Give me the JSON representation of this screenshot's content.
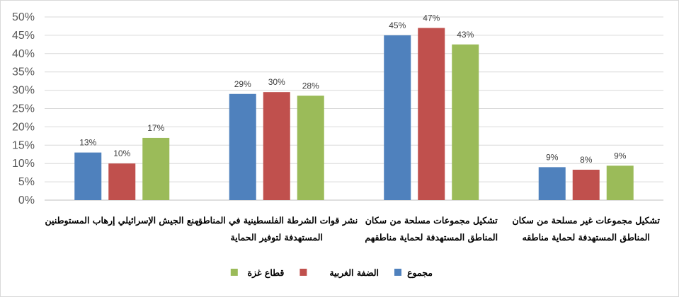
{
  "chart_data": {
    "type": "bar",
    "title": "",
    "xlabel": "",
    "ylabel": "",
    "ylim": [
      0,
      50
    ],
    "yticks": [
      "0%",
      "5%",
      "10%",
      "15%",
      "20%",
      "25%",
      "30%",
      "35%",
      "40%",
      "45%",
      "50%"
    ],
    "grid": true,
    "legend_position": "bottom",
    "categories": [
      [
        "منع الجيش الإسرائيلي إرهاب المستوطنين"
      ],
      [
        "نشر قوات الشرطة الفلسطينية في المناطق",
        "المستهدفة لتوفير الحماية"
      ],
      [
        "تشكيل مجموعات مسلحة من سكان",
        "المناطق المستهدفة لحماية مناطقهم"
      ],
      [
        "تشكيل مجموعات غير مسلحة من سكان",
        "المناطق المستهدفة لحماية مناطقه"
      ]
    ],
    "series": [
      {
        "name": "مجموع",
        "color": "#4f81bd",
        "values": [
          13,
          29,
          45,
          9
        ],
        "labels": [
          "13%",
          "29%",
          "45%",
          "9%"
        ]
      },
      {
        "name": "الضفة الغربية",
        "color": "#c0504d",
        "values": [
          10,
          29.5,
          47,
          8.3
        ],
        "labels": [
          "10%",
          "30%",
          "47%",
          "8%"
        ]
      },
      {
        "name": "قطاع غزة",
        "color": "#9bbb59",
        "values": [
          17,
          28.5,
          42.5,
          9.4
        ],
        "labels": [
          "17%",
          "28%",
          "43%",
          "9%"
        ]
      }
    ]
  }
}
